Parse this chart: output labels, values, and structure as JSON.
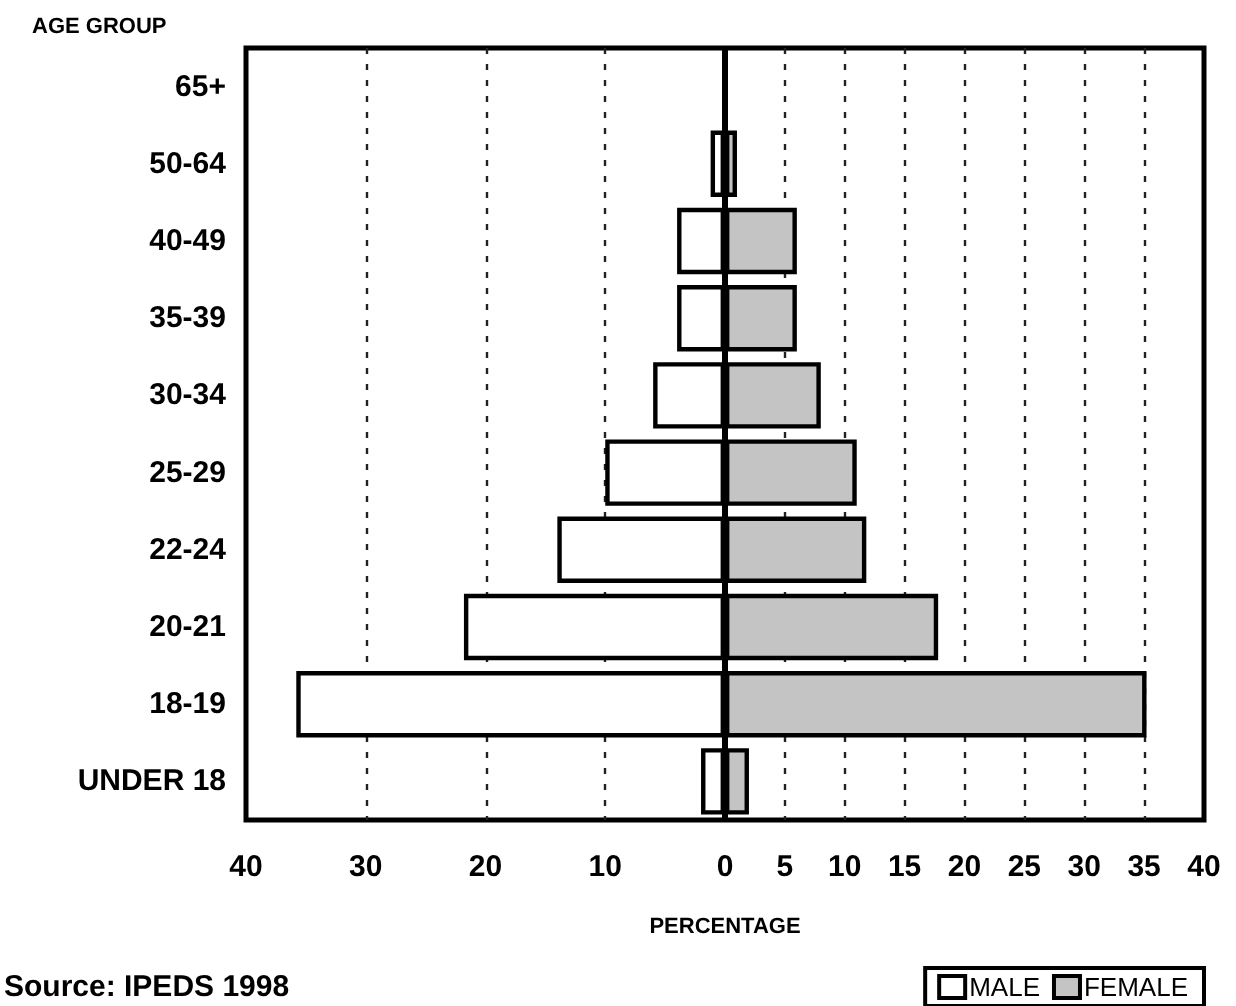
{
  "chart_data": {
    "type": "bar",
    "orientation": "horizontal",
    "stacked": true,
    "ylabel": "AGE GROUP",
    "xlabel": "PERCENTAGE",
    "categories": [
      "65+",
      "50-64",
      "40-49",
      "35-39",
      "30-34",
      "25-29",
      "22-24",
      "20-21",
      "18-19",
      "UNDER 18"
    ],
    "series": [
      {
        "name": "MALE",
        "color": "#ffffff",
        "values": [
          0,
          -1.2,
          -4,
          -4,
          -6,
          -10,
          -14,
          -21.8,
          -35.8,
          -2
        ]
      },
      {
        "name": "FEMALE",
        "color": "#c4c4c4",
        "values": [
          0,
          1,
          6,
          6,
          8,
          11,
          11.8,
          17.8,
          35.2,
          2
        ]
      }
    ],
    "xlim": [
      -40,
      40
    ],
    "xticks": [
      {
        "value": -40,
        "label": "40"
      },
      {
        "value": -30,
        "label": "30"
      },
      {
        "value": -20,
        "label": "20"
      },
      {
        "value": -10,
        "label": "10"
      },
      0,
      5,
      10,
      15,
      20,
      25,
      30,
      35,
      40
    ],
    "grid": "x",
    "legend": "bottom right",
    "ref_lines": [
      {
        "axis": "x",
        "value": 0,
        "label": null
      }
    ],
    "annotations": [
      "Source: IPEDS 1998"
    ]
  }
}
